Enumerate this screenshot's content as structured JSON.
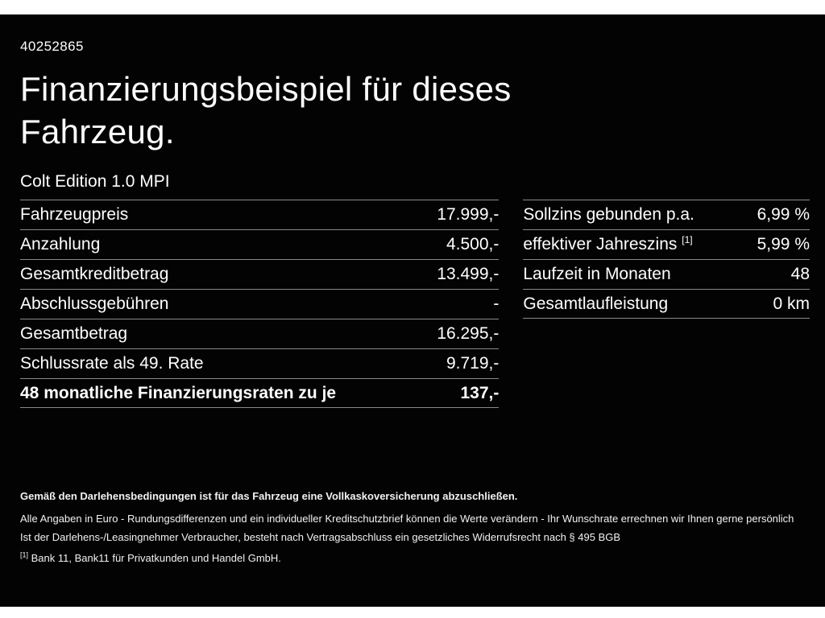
{
  "header": {
    "id_number": "40252865",
    "title_line1": "Finanzierungsbeispiel für dieses",
    "title_line2": "Fahrzeug.",
    "subtitle": "Colt Edition 1.0 MPI"
  },
  "left_table": {
    "rows": [
      {
        "label": "Fahrzeugpreis",
        "value": "17.999,-"
      },
      {
        "label": "Anzahlung",
        "value": "4.500,-"
      },
      {
        "label": "Gesamtkreditbetrag",
        "value": "13.499,-"
      },
      {
        "label": "Abschlussgebühren",
        "value": "-"
      },
      {
        "label": "Gesamtbetrag",
        "value": "16.295,-"
      },
      {
        "label": "Schlussrate als 49. Rate",
        "value": "9.719,-"
      },
      {
        "label": "48 monatliche Finanzierungsraten zu je",
        "value": "137,-"
      }
    ]
  },
  "right_table": {
    "rows": [
      {
        "label": "Sollzins gebunden p.a.",
        "sup": "",
        "value": "6,99 %"
      },
      {
        "label": "effektiver Jahreszins",
        "sup": "[1]",
        "value": "5,99 %"
      },
      {
        "label": "Laufzeit in Monaten",
        "sup": "",
        "value": "48"
      },
      {
        "label": "Gesamtlaufleistung",
        "sup": "",
        "value": "0 km"
      }
    ]
  },
  "footnotes": {
    "line1": "Gemäß den Darlehensbedingungen ist für das Fahrzeug eine Vollkaskoversicherung abzuschließen.",
    "line2": "Alle Angaben in Euro - Rundungsdifferenzen und ein individueller Kreditschutzbrief können die Werte verändern - Ihr Wunschrate errechnen wir Ihnen gerne persönlich",
    "line3": "Ist der Darlehens-/Leasingnehmer Verbraucher, besteht nach Vertragsabschluss ein gesetzliches Widerrufsrecht nach § 495 BGB",
    "line4_ref": "[1]",
    "line4_text": "Bank 11, Bank11 für Privatkunden und Handel GmbH."
  },
  "colors": {
    "background": "#030303",
    "text": "#ffffff",
    "divider": "#8a8a8a",
    "letterbox": "#ffffff"
  }
}
